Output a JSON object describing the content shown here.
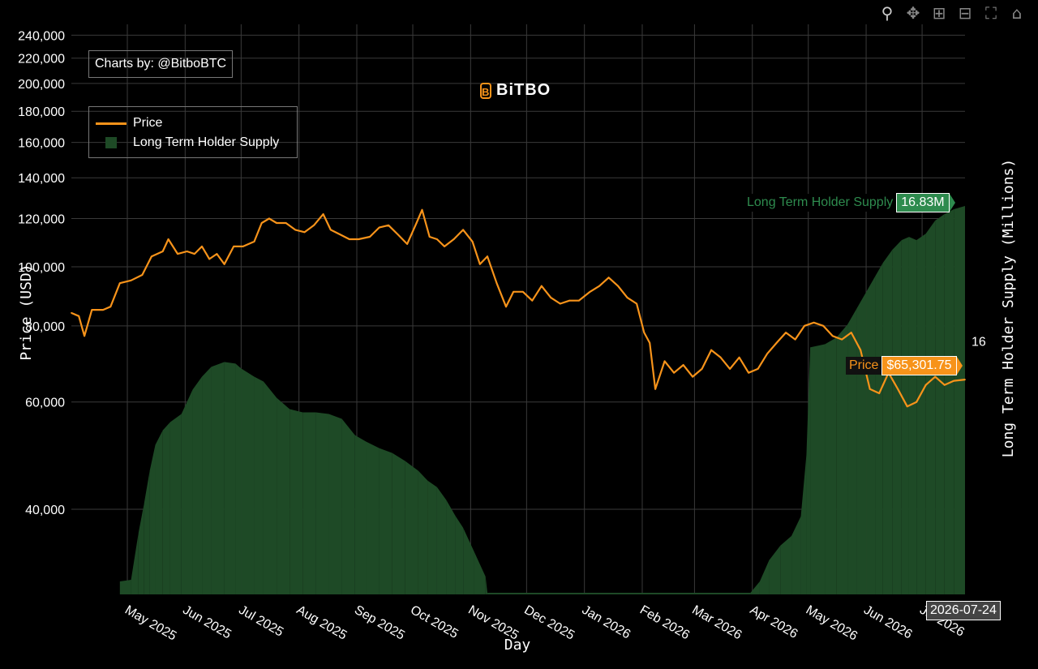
{
  "toolbar": {
    "buttons": [
      {
        "icon": "zoom-icon",
        "glyph": "⚲",
        "active": true
      },
      {
        "icon": "pan-icon",
        "glyph": "✥",
        "active": false
      },
      {
        "icon": "zoom-in-icon",
        "glyph": "⊞",
        "active": false
      },
      {
        "icon": "zoom-out-icon",
        "glyph": "⊟",
        "active": false
      },
      {
        "icon": "autoscale-icon",
        "glyph": "⛶",
        "active": false
      },
      {
        "icon": "home-icon",
        "glyph": "⌂",
        "active": false
      }
    ]
  },
  "credit": "Charts by: @BitboBTC",
  "logo": {
    "mark": "B",
    "text": "BiTBO"
  },
  "legend": {
    "price": "Price",
    "supply": "Long Term Holder Supply"
  },
  "hover": {
    "supply_name": "Long Term Holder Supply",
    "supply_value": "16.83M",
    "price_name": "Price",
    "price_value": "$65,301.75",
    "date": "2026-07-24"
  },
  "colors": {
    "price": "#f7931a",
    "supply_fill": "#1e4a26",
    "supply_label": "#2e8b4e",
    "grid": "#3a3a3a"
  },
  "chart_data": {
    "type": "line",
    "xlabel": "Day",
    "ylabel": "Price (USD)",
    "y2label": "Long Term Holder Supply (Millions)",
    "y_scale": "log",
    "ylim": [
      29000,
      250000
    ],
    "xlim": [
      "2025-04-01",
      "2026-07-24"
    ],
    "x_ticks": [
      "May 2025",
      "Jun 2025",
      "Jul 2025",
      "Aug 2025",
      "Sep 2025",
      "Oct 2025",
      "Nov 2025",
      "Dec 2025",
      "Jan 2026",
      "Feb 2026",
      "Mar 2026",
      "Apr 2026",
      "May 2026",
      "Jun 2026",
      "Jul 2026"
    ],
    "y_ticks": [
      40000,
      60000,
      80000,
      100000,
      120000,
      140000,
      160000,
      180000,
      200000,
      220000,
      240000
    ],
    "y_tick_labels": [
      "40,000",
      "60,000",
      "80,000",
      "100,000",
      "120,000",
      "140,000",
      "160,000",
      "180,000",
      "200,000",
      "220,000",
      "240,000"
    ],
    "y2_ticks": [
      16
    ],
    "y2_tick_labels": [
      "16"
    ],
    "y2lim": [
      14.44,
      16.85
    ],
    "series": [
      {
        "name": "Price",
        "x": [
          "2025-04-01",
          "2025-04-05",
          "2025-04-08",
          "2025-04-12",
          "2025-04-18",
          "2025-04-22",
          "2025-04-27",
          "2025-05-03",
          "2025-05-09",
          "2025-05-14",
          "2025-05-20",
          "2025-05-23",
          "2025-05-28",
          "2025-06-02",
          "2025-06-06",
          "2025-06-10",
          "2025-06-14",
          "2025-06-18",
          "2025-06-22",
          "2025-06-27",
          "2025-07-02",
          "2025-07-08",
          "2025-07-12",
          "2025-07-16",
          "2025-07-20",
          "2025-07-25",
          "2025-07-30",
          "2025-08-04",
          "2025-08-09",
          "2025-08-14",
          "2025-08-18",
          "2025-08-23",
          "2025-08-28",
          "2025-09-02",
          "2025-09-08",
          "2025-09-13",
          "2025-09-18",
          "2025-09-23",
          "2025-09-28",
          "2025-10-03",
          "2025-10-06",
          "2025-10-10",
          "2025-10-14",
          "2025-10-18",
          "2025-10-23",
          "2025-10-28",
          "2025-11-02",
          "2025-11-06",
          "2025-11-10",
          "2025-11-15",
          "2025-11-20",
          "2025-11-24",
          "2025-11-29",
          "2025-12-04",
          "2025-12-09",
          "2025-12-14",
          "2025-12-19",
          "2025-12-24",
          "2025-12-29",
          "2026-01-04",
          "2026-01-09",
          "2026-01-14",
          "2026-01-19",
          "2026-01-24",
          "2026-01-29",
          "2026-02-02",
          "2026-02-05",
          "2026-02-08",
          "2026-02-13",
          "2026-02-18",
          "2026-02-23",
          "2026-02-28",
          "2026-03-05",
          "2026-03-10",
          "2026-03-15",
          "2026-03-20",
          "2026-03-25",
          "2026-03-30",
          "2026-04-04",
          "2026-04-09",
          "2026-04-14",
          "2026-04-19",
          "2026-04-24",
          "2026-04-29",
          "2026-05-04",
          "2026-05-09",
          "2026-05-14",
          "2026-05-19",
          "2026-05-24",
          "2026-05-29",
          "2026-06-03",
          "2026-06-08",
          "2026-06-13",
          "2026-06-18",
          "2026-06-23",
          "2026-06-28",
          "2026-07-03",
          "2026-07-08",
          "2026-07-13",
          "2026-07-18",
          "2026-07-24"
        ],
        "values": [
          84000,
          83000,
          77000,
          85000,
          85000,
          86000,
          94000,
          95000,
          97000,
          104000,
          106000,
          111000,
          105000,
          106000,
          105000,
          108000,
          103000,
          105000,
          101000,
          108000,
          108000,
          110000,
          118000,
          120000,
          118000,
          118000,
          115000,
          114000,
          117000,
          122000,
          115000,
          113000,
          111000,
          111000,
          112000,
          116000,
          117000,
          113000,
          109000,
          118000,
          124000,
          112000,
          111000,
          108000,
          111000,
          115000,
          110000,
          101000,
          104000,
          94000,
          86000,
          91000,
          91000,
          88000,
          93000,
          89000,
          87000,
          88000,
          88000,
          91000,
          93000,
          96000,
          93000,
          89000,
          87000,
          78000,
          75000,
          63000,
          70000,
          67000,
          69000,
          66000,
          68000,
          73000,
          71000,
          68000,
          71000,
          67000,
          68000,
          72000,
          75000,
          78000,
          76000,
          80000,
          81000,
          80000,
          77000,
          76000,
          78000,
          73000,
          63000,
          62000,
          67000,
          63000,
          59000,
          60000,
          64000,
          66000,
          64000,
          65000,
          65300
        ]
      },
      {
        "name": "Long Term Holder Supply",
        "type": "area",
        "x": [
          "2025-04-01",
          "2025-04-27",
          "2025-05-03",
          "2025-05-07",
          "2025-05-10",
          "2025-05-13",
          "2025-05-16",
          "2025-05-20",
          "2025-05-24",
          "2025-05-30",
          "2025-06-05",
          "2025-06-10",
          "2025-06-15",
          "2025-06-22",
          "2025-06-28",
          "2025-07-01",
          "2025-07-08",
          "2025-07-13",
          "2025-07-20",
          "2025-07-27",
          "2025-08-03",
          "2025-08-10",
          "2025-08-17",
          "2025-08-24",
          "2025-08-31",
          "2025-09-06",
          "2025-09-13",
          "2025-09-20",
          "2025-09-27",
          "2025-10-04",
          "2025-10-09",
          "2025-10-14",
          "2025-10-19",
          "2025-10-24",
          "2025-10-28",
          "2025-11-03",
          "2025-11-09",
          "2025-11-10",
          "2026-03-31",
          "2026-04-05",
          "2026-04-10",
          "2026-04-16",
          "2026-04-22",
          "2026-04-27",
          "2026-04-30",
          "2026-05-02",
          "2026-05-10",
          "2026-05-16",
          "2026-05-22",
          "2026-05-27",
          "2026-06-01",
          "2026-06-06",
          "2026-06-10",
          "2026-06-15",
          "2026-06-20",
          "2026-06-24",
          "2026-06-28",
          "2026-07-03",
          "2026-07-08",
          "2026-07-13",
          "2026-07-18",
          "2026-07-24"
        ],
        "values": [
          null,
          14.52,
          14.53,
          14.82,
          15.0,
          15.2,
          15.36,
          15.45,
          15.5,
          15.55,
          15.7,
          15.78,
          15.84,
          15.87,
          15.86,
          15.83,
          15.78,
          15.75,
          15.65,
          15.58,
          15.56,
          15.56,
          15.55,
          15.52,
          15.42,
          15.38,
          15.34,
          15.31,
          15.26,
          15.2,
          15.14,
          15.1,
          15.02,
          14.92,
          14.85,
          14.7,
          14.55,
          14.45,
          14.45,
          14.52,
          14.65,
          14.74,
          14.8,
          14.92,
          15.3,
          15.96,
          15.98,
          16.02,
          16.1,
          16.2,
          16.3,
          16.4,
          16.48,
          16.56,
          16.62,
          16.64,
          16.62,
          16.66,
          16.74,
          16.78,
          16.81,
          16.83
        ]
      }
    ]
  }
}
